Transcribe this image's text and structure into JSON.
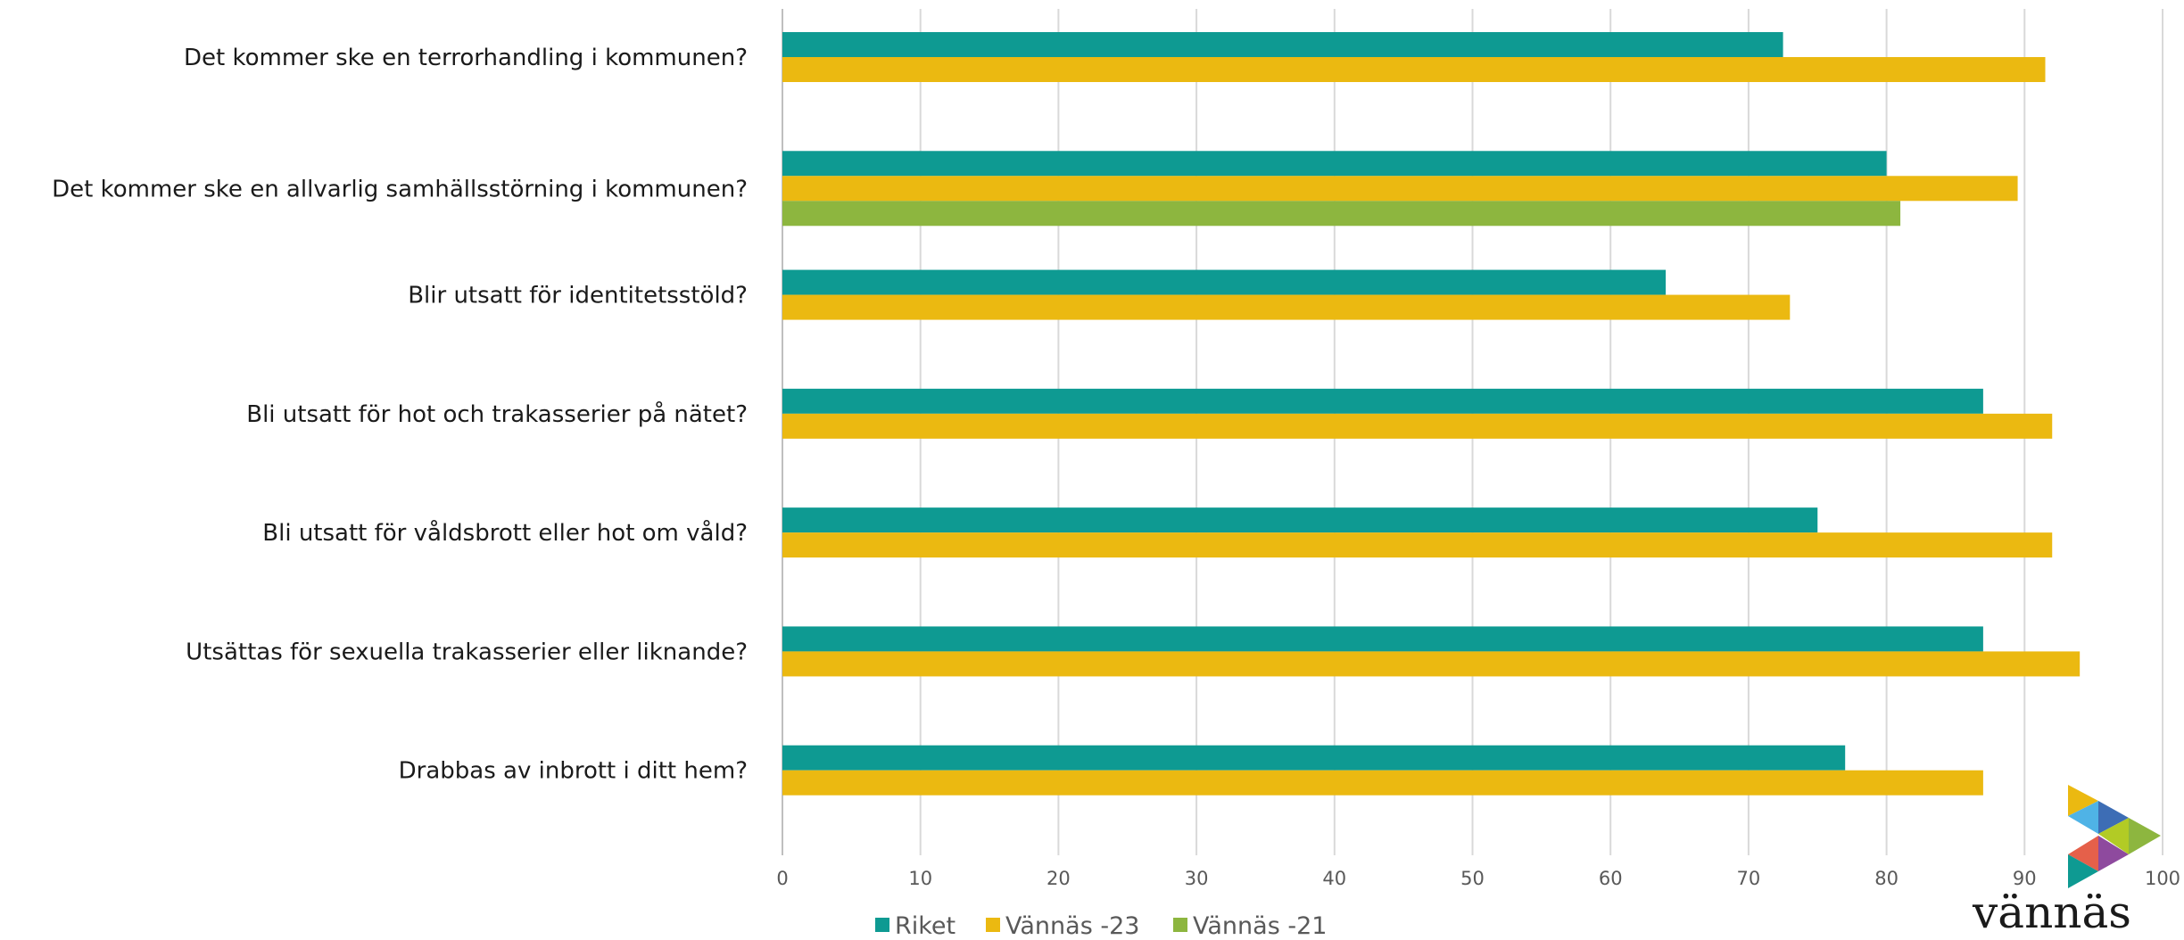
{
  "chart_data": {
    "type": "bar",
    "orientation": "horizontal",
    "categories": [
      "Det kommer ske en terrorhandling i kommunen?",
      "Det kommer ske en allvarlig samhällsstörning i kommunen?",
      "Blir utsatt för identitetsstöld?",
      "Bli utsatt för hot och trakasserier på nätet?",
      "Bli utsatt för våldsbrott eller hot om våld?",
      "Utsättas för sexuella trakasserier eller liknande?",
      "Drabbas av inbrott i ditt hem?"
    ],
    "series": [
      {
        "name": "Riket",
        "color": "#0E9A92",
        "values": [
          72.5,
          80,
          64,
          87,
          75,
          87,
          77
        ]
      },
      {
        "name": "Vännäs -23",
        "color": "#EBB911",
        "values": [
          91.5,
          89.5,
          73,
          92,
          92,
          94,
          87
        ]
      },
      {
        "name": "Vännäs -21",
        "color": "#8DB63F",
        "values": [
          null,
          81,
          null,
          null,
          null,
          null,
          null
        ]
      }
    ],
    "xlim": [
      0,
      100
    ],
    "xticks": [
      0,
      10,
      20,
      30,
      40,
      50,
      60,
      70,
      80,
      90,
      100
    ],
    "grid": true,
    "legend_position": "bottom"
  },
  "logo": {
    "text": "vännäs"
  }
}
